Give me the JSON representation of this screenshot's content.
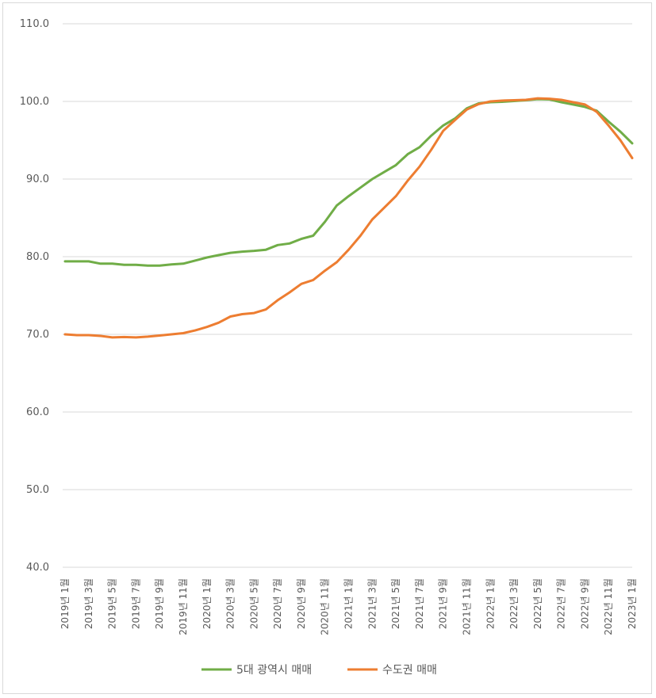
{
  "chart_data": {
    "type": "line",
    "title": "",
    "xlabel": "",
    "ylabel": "",
    "ylim": [
      40,
      110
    ],
    "yticks": [
      "40.0",
      "50.0",
      "60.0",
      "70.0",
      "80.0",
      "90.0",
      "100.0",
      "110.0"
    ],
    "grid": true,
    "legend_position": "bottom",
    "xtick_labels": [
      "2019년 1월",
      "2019년 3월",
      "2019년 5월",
      "2019년 7월",
      "2019년 9월",
      "2019년 11월",
      "2020년 1월",
      "2020년 3월",
      "2020년 5월",
      "2020년 7월",
      "2020년 9월",
      "2020년 11월",
      "2021년 1월",
      "2021년 3월",
      "2021년 5월",
      "2021년 7월",
      "2021년 9월",
      "2021년 11월",
      "2022년 1월",
      "2022년 3월",
      "2022년 5월",
      "2022년 7월",
      "2022년 9월",
      "2022년 11월",
      "2023년 1월"
    ],
    "series": [
      {
        "name": "5대 광역시 매매",
        "color": "#70ad47",
        "values": [
          79.4,
          79.4,
          79.4,
          79.1,
          79.1,
          78.95,
          78.95,
          78.85,
          78.85,
          79.0,
          79.1,
          79.5,
          79.9,
          80.2,
          80.5,
          80.65,
          80.75,
          80.9,
          81.5,
          81.7,
          82.3,
          82.7,
          84.5,
          86.6,
          87.8,
          88.9,
          90.0,
          90.9,
          91.8,
          93.2,
          94.1,
          95.6,
          96.9,
          97.8,
          99.1,
          99.75,
          99.9,
          99.95,
          100.05,
          100.15,
          100.3,
          100.25,
          99.9,
          99.6,
          99.3,
          98.8,
          97.4,
          96.1,
          94.6
        ]
      },
      {
        "name": "수도권 매매",
        "color": "#ed7d31",
        "values": [
          70.0,
          69.9,
          69.9,
          69.8,
          69.6,
          69.65,
          69.6,
          69.7,
          69.85,
          70.0,
          70.15,
          70.5,
          70.95,
          71.5,
          72.3,
          72.6,
          72.75,
          73.2,
          74.4,
          75.4,
          76.5,
          77.0,
          78.2,
          79.3,
          80.9,
          82.7,
          84.8,
          86.3,
          87.8,
          89.8,
          91.6,
          93.8,
          96.2,
          97.6,
          98.95,
          99.65,
          100.0,
          100.1,
          100.15,
          100.2,
          100.4,
          100.35,
          100.2,
          99.9,
          99.6,
          98.65,
          96.9,
          95.0,
          92.7
        ]
      }
    ]
  }
}
